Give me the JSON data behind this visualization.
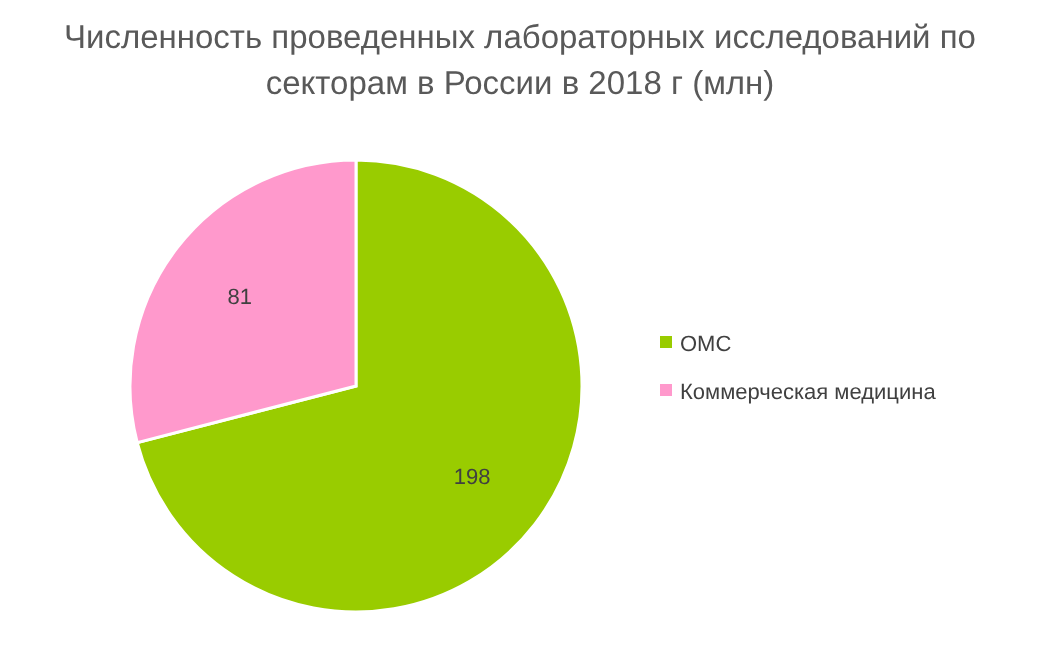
{
  "chart_data": {
    "type": "pie",
    "title": "Численность проведенных лабораторных исследований по секторам в России в 2018 г (млн)",
    "categories": [
      "ОМС",
      "Коммерческая медицина"
    ],
    "values": [
      198,
      81
    ],
    "colors": [
      "#99cc00",
      "#ff99cc"
    ],
    "data_labels": true,
    "legend": "right"
  }
}
